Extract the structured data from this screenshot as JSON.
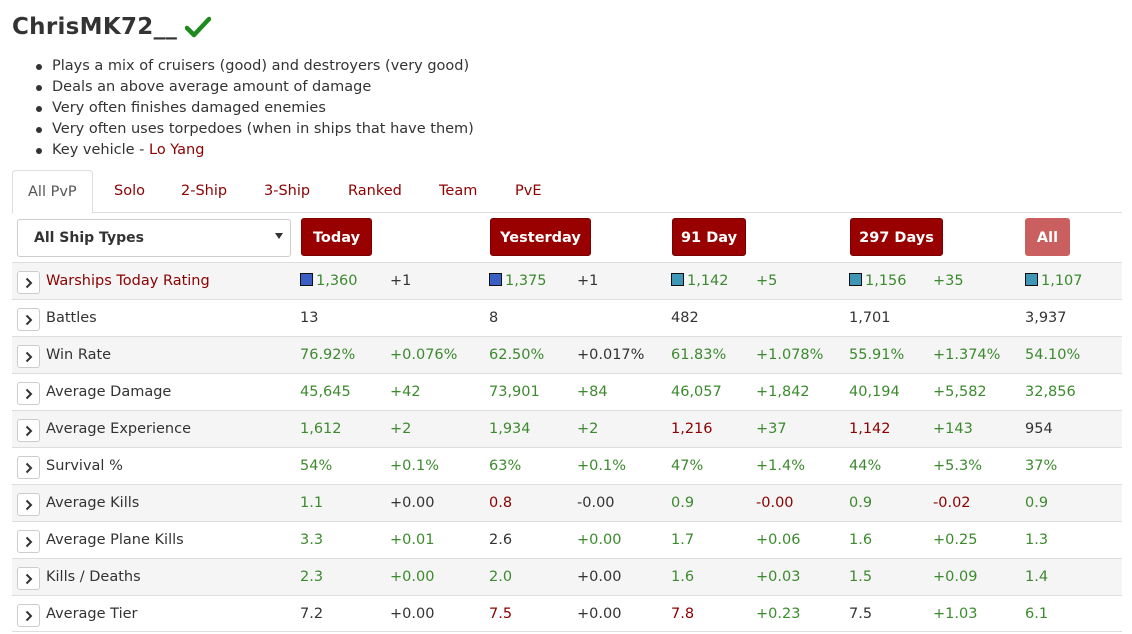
{
  "player": {
    "name": "ChrisMK72__",
    "verified_icon": "check-icon",
    "verified_color": "#1e8a1e"
  },
  "traits": [
    "Plays a mix of cruisers (good) and destroyers (very good)",
    "Deals an above average amount of damage",
    "Very often finishes damaged enemies",
    "Very often uses torpedoes (when in ships that have them)"
  ],
  "key_vehicle": {
    "prefix": "Key vehicle - ",
    "name": "Lo Yang"
  },
  "tabs": [
    {
      "label": "All PvP",
      "active": true
    },
    {
      "label": "Solo",
      "active": false
    },
    {
      "label": "2-Ship",
      "active": false
    },
    {
      "label": "3-Ship",
      "active": false
    },
    {
      "label": "Ranked",
      "active": false
    },
    {
      "label": "Team",
      "active": false
    },
    {
      "label": "PvE",
      "active": false
    }
  ],
  "ship_filter": {
    "selected": "All Ship Types"
  },
  "periods": [
    {
      "label": "Today"
    },
    {
      "label": "Yesterday"
    },
    {
      "label": "91 Day"
    },
    {
      "label": "297 Days"
    },
    {
      "label": "All"
    }
  ],
  "colors": {
    "accent": "#990000",
    "accent_light": "#c9605f",
    "good": "#3c8a2e",
    "bad": "#8b0000",
    "neutral": "#333333",
    "swatch_dark_blue": "#3a5fc4",
    "swatch_teal": "#3e97b4"
  },
  "rows": [
    {
      "label": "Warships Today Rating",
      "link": true,
      "cells": [
        {
          "value": "1,360",
          "color": "green",
          "swatch": "#3a5fc4"
        },
        {
          "value": "+1",
          "color": "dark"
        },
        {
          "value": "1,375",
          "color": "green",
          "swatch": "#3a5fc4"
        },
        {
          "value": "+1",
          "color": "dark"
        },
        {
          "value": "1,142",
          "color": "green",
          "swatch": "#3e97b4"
        },
        {
          "value": "+5",
          "color": "green"
        },
        {
          "value": "1,156",
          "color": "green",
          "swatch": "#3e97b4"
        },
        {
          "value": "+35",
          "color": "green"
        },
        {
          "value": "1,107",
          "color": "green",
          "swatch": "#3e97b4"
        }
      ]
    },
    {
      "label": "Battles",
      "link": false,
      "cells": [
        {
          "value": "13",
          "color": "dark"
        },
        {
          "value": "",
          "color": "dark"
        },
        {
          "value": "8",
          "color": "dark"
        },
        {
          "value": "",
          "color": "dark"
        },
        {
          "value": "482",
          "color": "dark"
        },
        {
          "value": "",
          "color": "dark"
        },
        {
          "value": "1,701",
          "color": "dark"
        },
        {
          "value": "",
          "color": "dark"
        },
        {
          "value": "3,937",
          "color": "dark"
        }
      ]
    },
    {
      "label": "Win Rate",
      "link": false,
      "cells": [
        {
          "value": "76.92%",
          "color": "green"
        },
        {
          "value": "+0.076%",
          "color": "green"
        },
        {
          "value": "62.50%",
          "color": "green"
        },
        {
          "value": "+0.017%",
          "color": "dark"
        },
        {
          "value": "61.83%",
          "color": "green"
        },
        {
          "value": "+1.078%",
          "color": "green"
        },
        {
          "value": "55.91%",
          "color": "green"
        },
        {
          "value": "+1.374%",
          "color": "green"
        },
        {
          "value": "54.10%",
          "color": "green"
        }
      ]
    },
    {
      "label": "Average Damage",
      "link": false,
      "cells": [
        {
          "value": "45,645",
          "color": "green"
        },
        {
          "value": "+42",
          "color": "green"
        },
        {
          "value": "73,901",
          "color": "green"
        },
        {
          "value": "+84",
          "color": "green"
        },
        {
          "value": "46,057",
          "color": "green"
        },
        {
          "value": "+1,842",
          "color": "green"
        },
        {
          "value": "40,194",
          "color": "green"
        },
        {
          "value": "+5,582",
          "color": "green"
        },
        {
          "value": "32,856",
          "color": "green"
        }
      ]
    },
    {
      "label": "Average Experience",
      "link": false,
      "cells": [
        {
          "value": "1,612",
          "color": "green"
        },
        {
          "value": "+2",
          "color": "green"
        },
        {
          "value": "1,934",
          "color": "green"
        },
        {
          "value": "+2",
          "color": "green"
        },
        {
          "value": "1,216",
          "color": "red"
        },
        {
          "value": "+37",
          "color": "green"
        },
        {
          "value": "1,142",
          "color": "red"
        },
        {
          "value": "+143",
          "color": "green"
        },
        {
          "value": "954",
          "color": "dark"
        }
      ]
    },
    {
      "label": "Survival %",
      "link": false,
      "cells": [
        {
          "value": "54%",
          "color": "green"
        },
        {
          "value": "+0.1%",
          "color": "green"
        },
        {
          "value": "63%",
          "color": "green"
        },
        {
          "value": "+0.1%",
          "color": "green"
        },
        {
          "value": "47%",
          "color": "green"
        },
        {
          "value": "+1.4%",
          "color": "green"
        },
        {
          "value": "44%",
          "color": "green"
        },
        {
          "value": "+5.3%",
          "color": "green"
        },
        {
          "value": "37%",
          "color": "green"
        }
      ]
    },
    {
      "label": "Average Kills",
      "link": false,
      "cells": [
        {
          "value": "1.1",
          "color": "green"
        },
        {
          "value": "+0.00",
          "color": "dark"
        },
        {
          "value": "0.8",
          "color": "red"
        },
        {
          "value": "-0.00",
          "color": "dark"
        },
        {
          "value": "0.9",
          "color": "green"
        },
        {
          "value": "-0.00",
          "color": "red"
        },
        {
          "value": "0.9",
          "color": "green"
        },
        {
          "value": "-0.02",
          "color": "red"
        },
        {
          "value": "0.9",
          "color": "green"
        }
      ]
    },
    {
      "label": "Average Plane Kills",
      "link": false,
      "cells": [
        {
          "value": "3.3",
          "color": "green"
        },
        {
          "value": "+0.01",
          "color": "green"
        },
        {
          "value": "2.6",
          "color": "dark"
        },
        {
          "value": "+0.00",
          "color": "green"
        },
        {
          "value": "1.7",
          "color": "green"
        },
        {
          "value": "+0.06",
          "color": "green"
        },
        {
          "value": "1.6",
          "color": "green"
        },
        {
          "value": "+0.25",
          "color": "green"
        },
        {
          "value": "1.3",
          "color": "green"
        }
      ]
    },
    {
      "label": "Kills / Deaths",
      "link": false,
      "cells": [
        {
          "value": "2.3",
          "color": "green"
        },
        {
          "value": "+0.00",
          "color": "green"
        },
        {
          "value": "2.0",
          "color": "green"
        },
        {
          "value": "+0.00",
          "color": "dark"
        },
        {
          "value": "1.6",
          "color": "green"
        },
        {
          "value": "+0.03",
          "color": "green"
        },
        {
          "value": "1.5",
          "color": "green"
        },
        {
          "value": "+0.09",
          "color": "green"
        },
        {
          "value": "1.4",
          "color": "green"
        }
      ]
    },
    {
      "label": "Average Tier",
      "link": false,
      "cells": [
        {
          "value": "7.2",
          "color": "dark"
        },
        {
          "value": "+0.00",
          "color": "dark"
        },
        {
          "value": "7.5",
          "color": "red"
        },
        {
          "value": "+0.00",
          "color": "dark"
        },
        {
          "value": "7.8",
          "color": "red"
        },
        {
          "value": "+0.23",
          "color": "green"
        },
        {
          "value": "7.5",
          "color": "dark"
        },
        {
          "value": "+1.03",
          "color": "green"
        },
        {
          "value": "6.1",
          "color": "green"
        }
      ]
    }
  ]
}
